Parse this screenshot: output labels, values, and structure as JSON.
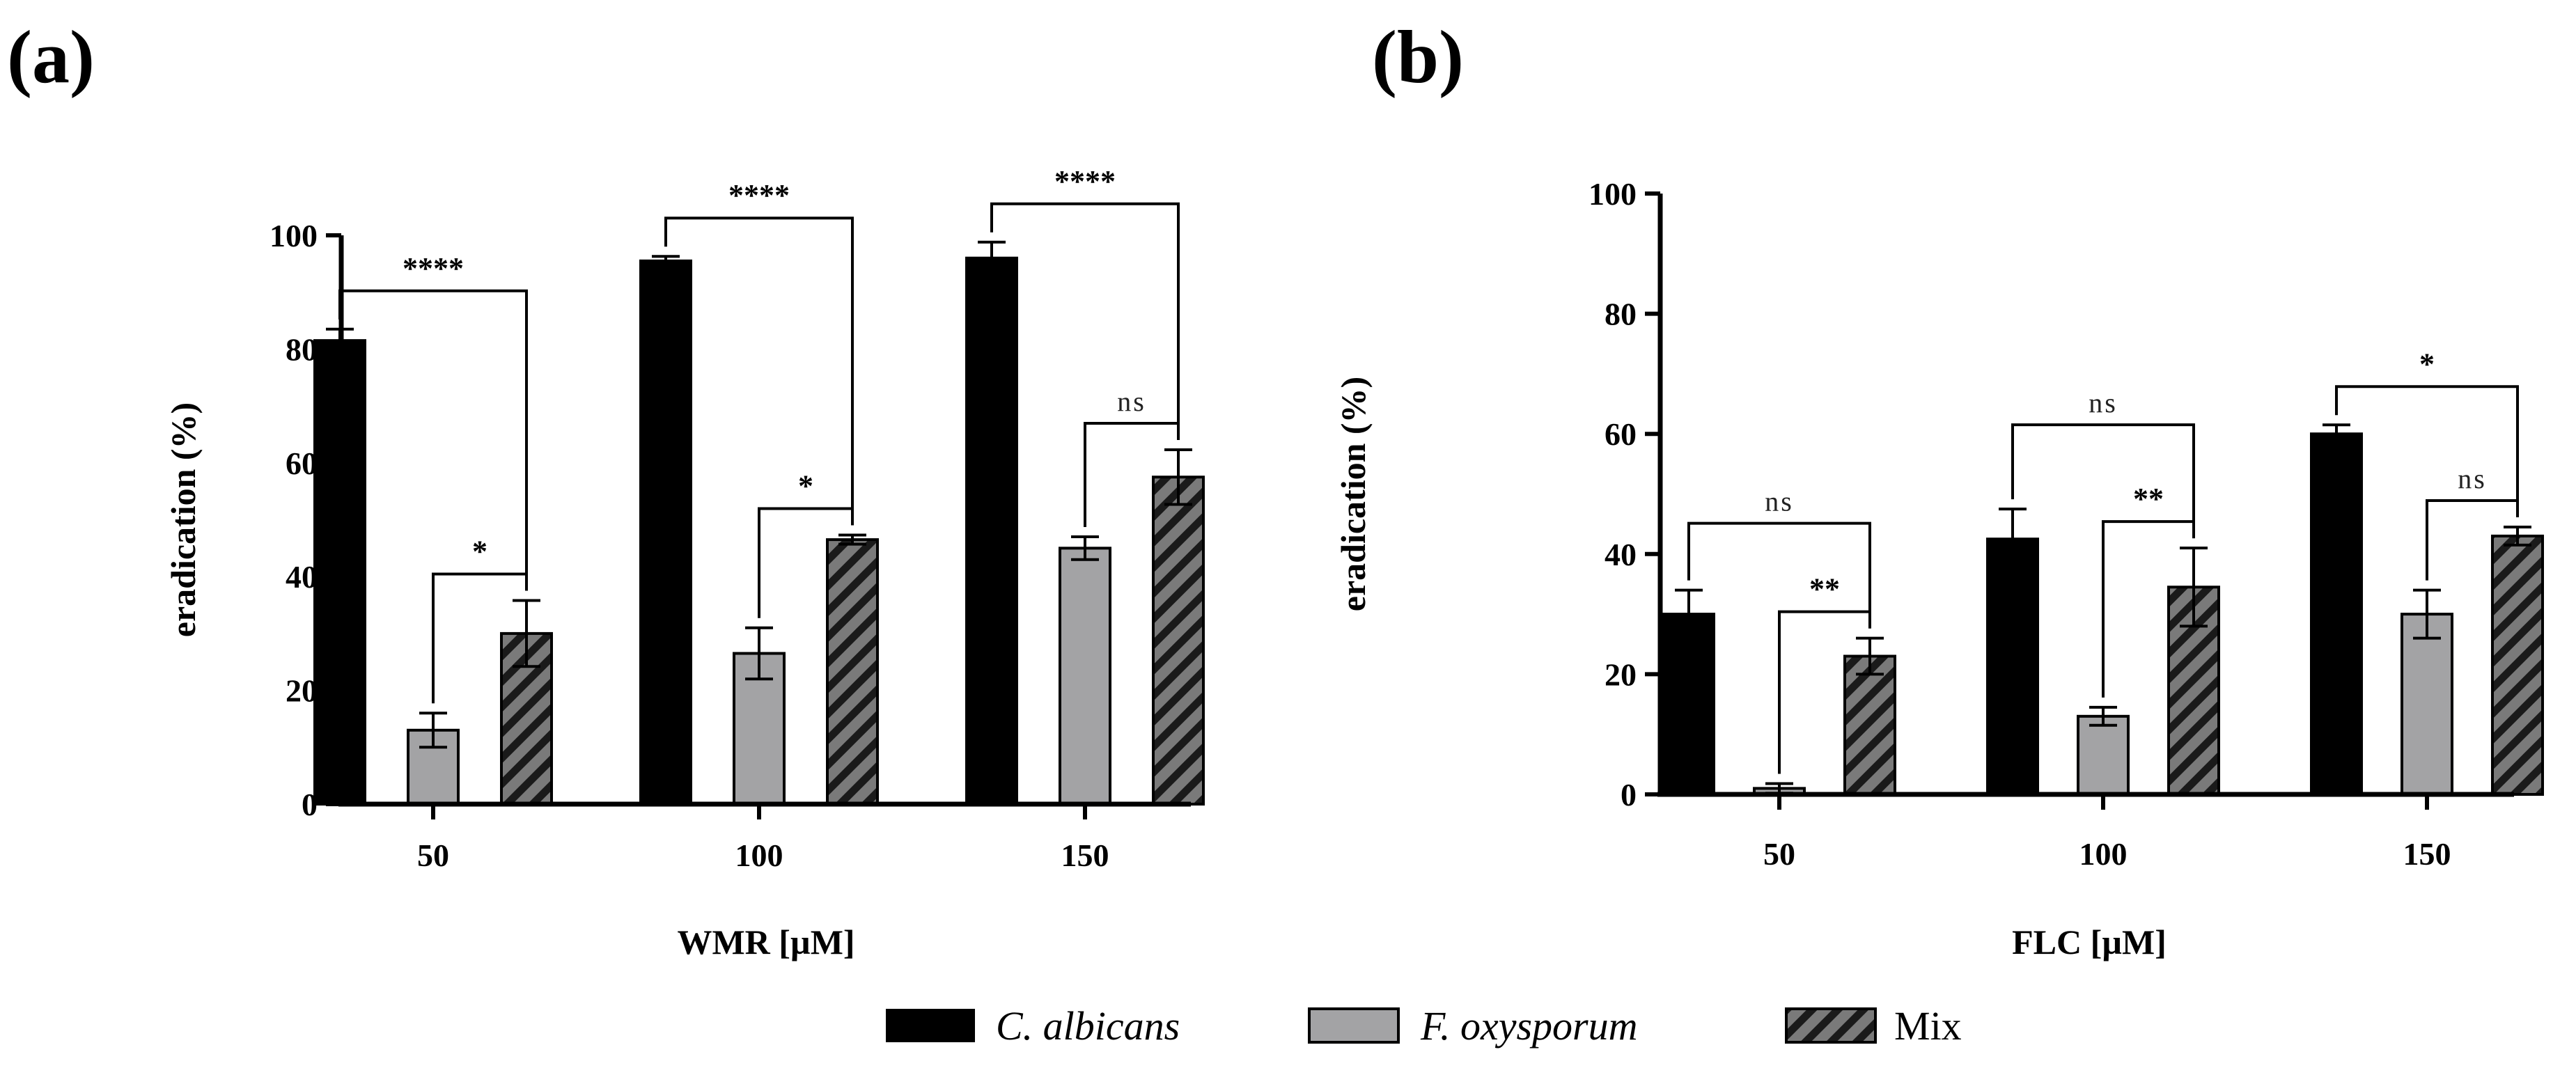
{
  "colors": {
    "c_albicans": "#000000",
    "f_oxysporum": "#a3a3a5",
    "mix": "#7a7a7a",
    "hatch": "#1a1a1a",
    "axis": "#000000"
  },
  "legend": [
    {
      "key": "c_albicans",
      "label": "C. albicans",
      "italic": true
    },
    {
      "key": "f_oxysporum",
      "label": "F. oxysporum",
      "italic": true
    },
    {
      "key": "mix",
      "label": "Mix",
      "italic": false
    }
  ],
  "chart_data": [
    {
      "panel_label": "(a)",
      "type": "bar",
      "xlabel": "WMR [µM]",
      "ylabel": "eradication (%)",
      "ylim": [
        0,
        100
      ],
      "yticks": [
        "0",
        "20",
        "40",
        "60",
        "80",
        "100"
      ],
      "categories": [
        "50",
        "100",
        "150"
      ],
      "series": [
        {
          "name": "C. albicans",
          "key": "c_albicans",
          "values": [
            81.5,
            95.5,
            96.0
          ],
          "errors": [
            2.0,
            0.8,
            2.8
          ]
        },
        {
          "name": "F. oxysporum",
          "key": "f_oxysporum",
          "values": [
            13.0,
            26.5,
            45.0
          ],
          "errors": [
            3.0,
            4.5,
            2.0
          ]
        },
        {
          "name": "Mix",
          "key": "mix",
          "values": [
            30.0,
            46.5,
            57.5
          ],
          "errors": [
            5.8,
            0.8,
            4.8
          ]
        }
      ],
      "significance": [
        {
          "group": 0,
          "from": 0,
          "to": 2,
          "label": "****",
          "level": "high"
        },
        {
          "group": 0,
          "from": 1,
          "to": 2,
          "label": "*",
          "level": "low"
        },
        {
          "group": 1,
          "from": 0,
          "to": 2,
          "label": "****",
          "level": "high"
        },
        {
          "group": 1,
          "from": 1,
          "to": 2,
          "label": "*",
          "level": "low"
        },
        {
          "group": 2,
          "from": 0,
          "to": 2,
          "label": "****",
          "level": "high"
        },
        {
          "group": 2,
          "from": 1,
          "to": 2,
          "label": "ns",
          "level": "low"
        }
      ]
    },
    {
      "panel_label": "(b)",
      "type": "bar",
      "xlabel": "FLC [µM]",
      "ylabel": "eradication (%)",
      "ylim": [
        0,
        100
      ],
      "yticks": [
        "0",
        "20",
        "40",
        "60",
        "80",
        "100"
      ],
      "categories": [
        "50",
        "100",
        "150"
      ],
      "series": [
        {
          "name": "C. albicans",
          "key": "c_albicans",
          "values": [
            30.0,
            42.5,
            60.0
          ],
          "errors": [
            4.0,
            5.0,
            1.5
          ]
        },
        {
          "name": "F. oxysporum",
          "key": "f_oxysporum",
          "values": [
            1.0,
            13.0,
            30.0
          ],
          "errors": [
            0.8,
            1.5,
            4.0
          ]
        },
        {
          "name": "Mix",
          "key": "mix",
          "values": [
            23.0,
            34.5,
            43.0
          ],
          "errors": [
            3.0,
            6.5,
            1.5
          ]
        }
      ],
      "significance": [
        {
          "group": 0,
          "from": 0,
          "to": 2,
          "label": "ns",
          "level": "high"
        },
        {
          "group": 0,
          "from": 1,
          "to": 2,
          "label": "**",
          "level": "low"
        },
        {
          "group": 1,
          "from": 0,
          "to": 2,
          "label": "ns",
          "level": "high"
        },
        {
          "group": 1,
          "from": 1,
          "to": 2,
          "label": "**",
          "level": "low"
        },
        {
          "group": 2,
          "from": 0,
          "to": 2,
          "label": "*",
          "level": "high"
        },
        {
          "group": 2,
          "from": 1,
          "to": 2,
          "label": "ns",
          "level": "low"
        }
      ]
    }
  ]
}
